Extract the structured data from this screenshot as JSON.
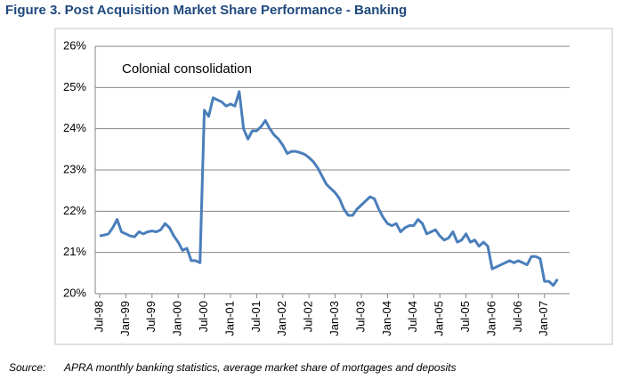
{
  "chart_data": {
    "type": "line",
    "title": "Figure 3.  Post Acquisition Market Share Performance - Banking",
    "annotation": "Colonial consolidation",
    "source_label": "Source:",
    "source": "APRA monthly banking statistics, average market share of mortgages and deposits",
    "categories": [
      "Jul-98",
      null,
      null,
      null,
      null,
      null,
      "Jan-99",
      null,
      null,
      null,
      null,
      null,
      "Jul-99",
      null,
      null,
      null,
      null,
      null,
      "Jan-00",
      null,
      null,
      null,
      null,
      null,
      "Jul-00",
      null,
      null,
      null,
      null,
      null,
      "Jan-01",
      null,
      null,
      null,
      null,
      null,
      "Jul-01",
      null,
      null,
      null,
      null,
      null,
      "Jan-02",
      null,
      null,
      null,
      null,
      null,
      "Jul-02",
      null,
      null,
      null,
      null,
      null,
      "Jan-03",
      null,
      null,
      null,
      null,
      null,
      "Jul-03",
      null,
      null,
      null,
      null,
      null,
      "Jan-04",
      null,
      null,
      null,
      null,
      null,
      "Jul-04",
      null,
      null,
      null,
      null,
      null,
      "Jan-05",
      null,
      null,
      null,
      null,
      null,
      "Jul-05",
      null,
      null,
      null,
      null,
      null,
      "Jan-06",
      null,
      null,
      null,
      null,
      null,
      "Jul-06",
      null,
      null,
      null,
      null,
      null,
      "Jan-07",
      null,
      null,
      null
    ],
    "series": [
      {
        "name": "Market share",
        "color": "#4a7ebb",
        "values": [
          21.4,
          21.42,
          21.45,
          21.6,
          21.8,
          21.5,
          21.45,
          21.4,
          21.38,
          21.5,
          21.45,
          21.5,
          21.52,
          21.5,
          21.55,
          21.7,
          21.6,
          21.4,
          21.25,
          21.05,
          21.1,
          20.8,
          20.8,
          20.75,
          24.45,
          24.3,
          24.75,
          24.7,
          24.65,
          24.55,
          24.6,
          24.55,
          24.9,
          24.0,
          23.75,
          23.95,
          23.95,
          24.05,
          24.2,
          24.0,
          23.85,
          23.75,
          23.6,
          23.4,
          23.45,
          23.45,
          23.42,
          23.38,
          23.3,
          23.2,
          23.05,
          22.85,
          22.65,
          22.55,
          22.45,
          22.3,
          22.05,
          21.9,
          21.9,
          22.05,
          22.15,
          22.25,
          22.35,
          22.3,
          22.05,
          21.85,
          21.7,
          21.65,
          21.7,
          21.5,
          21.6,
          21.65,
          21.65,
          21.8,
          21.7,
          21.45,
          21.5,
          21.55,
          21.4,
          21.3,
          21.35,
          21.5,
          21.25,
          21.3,
          21.45,
          21.25,
          21.3,
          21.15,
          21.25,
          21.15,
          20.6,
          20.65,
          20.7,
          20.75,
          20.8,
          20.75,
          20.8,
          20.75,
          20.7,
          20.9,
          20.9,
          20.85,
          20.3,
          20.3,
          20.2,
          20.35
        ]
      }
    ],
    "ylim": [
      20,
      26
    ],
    "yticks": [
      {
        "value": 20,
        "label": "20%"
      },
      {
        "value": 21,
        "label": "21%"
      },
      {
        "value": 22,
        "label": "22%"
      },
      {
        "value": 23,
        "label": "23%"
      },
      {
        "value": 24,
        "label": "24%"
      },
      {
        "value": 25,
        "label": "25%"
      },
      {
        "value": 26,
        "label": "26%"
      }
    ],
    "grid": true
  }
}
